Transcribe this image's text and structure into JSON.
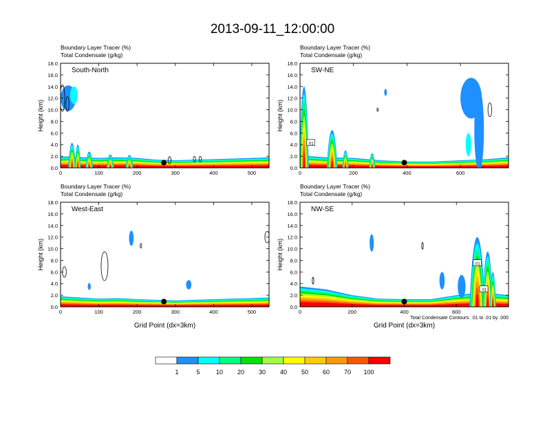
{
  "title": "2013-09-11_12:00:00",
  "chart_data": [
    {
      "type": "area",
      "panel_label": "South-North",
      "subtitle_line1": "Boundary Layer Tracer    (%)",
      "subtitle_line2": "Total Condensate   (g/kg)",
      "ylabel": "Height (km)",
      "xlabel": "",
      "xlim": [
        0,
        545
      ],
      "ylim": [
        0,
        18
      ],
      "xticks": [
        0,
        100,
        200,
        300,
        400,
        500
      ],
      "yticks": [
        "0.0",
        "2.0",
        "4.0",
        "6.0",
        "8.0",
        "10.0",
        "12.0",
        "14.0",
        "16.0",
        "18.0"
      ],
      "tracer_top": [
        [
          0,
          1.9
        ],
        [
          30,
          2.0
        ],
        [
          60,
          1.8
        ],
        [
          100,
          1.7
        ],
        [
          150,
          1.8
        ],
        [
          200,
          1.7
        ],
        [
          250,
          1.4
        ],
        [
          300,
          1.3
        ],
        [
          350,
          1.4
        ],
        [
          400,
          1.5
        ],
        [
          450,
          1.6
        ],
        [
          500,
          1.7
        ],
        [
          545,
          1.8
        ]
      ],
      "plumes": [
        [
          30,
          4.3,
          10
        ],
        [
          45,
          4.0,
          8
        ],
        [
          75,
          2.8,
          10
        ],
        [
          130,
          2.3,
          10
        ],
        [
          180,
          2.2,
          10
        ]
      ],
      "clouds": [
        [
          20,
          12.0,
          20,
          2.2,
          "#1e90ff"
        ],
        [
          35,
          12.5,
          10,
          1.5,
          "#00ffff"
        ]
      ],
      "contours": [
        [
          5,
          12,
          6,
          2.3
        ],
        [
          18,
          11,
          4,
          1.3
        ],
        [
          285,
          1.3,
          4,
          0.6
        ],
        [
          350,
          1.5,
          3,
          0.5
        ],
        [
          365,
          1.5,
          3,
          0.5
        ]
      ],
      "marker": [
        270,
        0.9
      ]
    },
    {
      "type": "area",
      "panel_label": "SW-NE",
      "subtitle_line1": "Boundary Layer Tracer    (%)",
      "subtitle_line2": "Total Condensate   (g/kg)",
      "ylabel": "Height (km)",
      "xlabel": "",
      "xlim": [
        0,
        780
      ],
      "ylim": [
        0,
        18
      ],
      "xticks": [
        0,
        200,
        400,
        600
      ],
      "yticks": [
        "0.0",
        "2.0",
        "4.0",
        "6.0",
        "8.0",
        "10.0",
        "12.0",
        "14.0",
        "16.0",
        "18.0"
      ],
      "tracer_top": [
        [
          0,
          2.5
        ],
        [
          40,
          2.0
        ],
        [
          100,
          1.8
        ],
        [
          200,
          1.7
        ],
        [
          300,
          1.3
        ],
        [
          400,
          1.1
        ],
        [
          500,
          1.1
        ],
        [
          600,
          1.3
        ],
        [
          700,
          1.5
        ],
        [
          780,
          1.8
        ]
      ],
      "plumes": [
        [
          15,
          14.0,
          18
        ],
        [
          120,
          6.5,
          20
        ],
        [
          170,
          3.0,
          12
        ],
        [
          270,
          2.5,
          12
        ]
      ],
      "clouds": [
        [
          640,
          12.0,
          40,
          3.5,
          "#1e90ff"
        ],
        [
          670,
          6.5,
          18,
          7,
          "#1e90ff"
        ],
        [
          630,
          4.0,
          10,
          2,
          "#00ffff"
        ],
        [
          320,
          13.0,
          5,
          0.6,
          "#1e90ff"
        ]
      ],
      "contours": [
        [
          710,
          10.0,
          7,
          1.2
        ],
        [
          290,
          10.0,
          2,
          0.3
        ]
      ],
      "contour_labels": [
        [
          40,
          4.3,
          ".01"
        ]
      ],
      "marker": [
        390,
        0.9
      ]
    },
    {
      "type": "area",
      "panel_label": "West-East",
      "subtitle_line1": "Boundary Layer Tracer    (%)",
      "subtitle_line2": "Total Condensate   (g/kg)",
      "ylabel": "Height (km)",
      "xlabel": "Grid Point (dx=3km)",
      "xlim": [
        0,
        545
      ],
      "ylim": [
        0,
        18
      ],
      "xticks": [
        0,
        100,
        200,
        300,
        400,
        500
      ],
      "yticks": [
        "0.0",
        "2.0",
        "4.0",
        "6.0",
        "8.0",
        "10.0",
        "12.0",
        "14.0",
        "16.0",
        "18.0"
      ],
      "tracer_top": [
        [
          0,
          1.8
        ],
        [
          50,
          1.6
        ],
        [
          100,
          1.4
        ],
        [
          150,
          1.5
        ],
        [
          200,
          1.3
        ],
        [
          250,
          1.2
        ],
        [
          300,
          1.1
        ],
        [
          350,
          1.2
        ],
        [
          400,
          1.3
        ],
        [
          450,
          1.4
        ],
        [
          500,
          1.5
        ],
        [
          545,
          1.6
        ]
      ],
      "plumes": [],
      "clouds": [
        [
          185,
          11.8,
          6,
          1.3,
          "#1e90ff"
        ],
        [
          75,
          3.5,
          4,
          0.6,
          "#1e90ff"
        ],
        [
          335,
          3.8,
          7,
          0.8,
          "#1e90ff"
        ]
      ],
      "contours": [
        [
          115,
          7.0,
          9,
          2.5
        ],
        [
          10,
          6.0,
          5,
          0.9
        ],
        [
          540,
          12.0,
          6,
          1.0
        ],
        [
          210,
          10.5,
          2,
          0.4
        ]
      ],
      "marker": [
        270,
        0.9
      ]
    },
    {
      "type": "area",
      "panel_label": "NW-SE",
      "subtitle_line1": "Boundary Layer Tracer    (%)",
      "subtitle_line2": "Total Condensate   (g/kg)",
      "ylabel": "Height (km)",
      "xlabel": "Grid Point (dx=3km)",
      "note": "Total Condensate Contours: .01 to .01 by .000",
      "xlim": [
        0,
        800
      ],
      "ylim": [
        0,
        18
      ],
      "xticks": [
        0,
        200,
        400,
        600
      ],
      "yticks": [
        "0.0",
        "2.0",
        "4.0",
        "6.0",
        "8.0",
        "10.0",
        "12.0",
        "14.0",
        "16.0",
        "18.0"
      ],
      "tracer_top": [
        [
          0,
          3.5
        ],
        [
          100,
          3.0
        ],
        [
          200,
          2.0
        ],
        [
          300,
          1.4
        ],
        [
          400,
          1.3
        ],
        [
          500,
          1.3
        ],
        [
          600,
          2.0
        ],
        [
          700,
          2.5
        ],
        [
          800,
          2.0
        ]
      ],
      "plumes": [
        [
          680,
          12.0,
          30
        ],
        [
          720,
          9.5,
          20
        ],
        [
          740,
          6.0,
          12
        ]
      ],
      "clouds": [
        [
          275,
          11.0,
          8,
          1.5,
          "#1e90ff"
        ],
        [
          545,
          4.5,
          10,
          1.5,
          "#1e90ff"
        ],
        [
          620,
          3.5,
          15,
          2,
          "#1e90ff"
        ]
      ],
      "contours": [
        [
          470,
          10.5,
          3,
          0.6
        ],
        [
          50,
          4.5,
          3,
          0.6
        ]
      ],
      "contour_labels": [
        [
          680,
          7.5,
          ".01"
        ],
        [
          705,
          3.0,
          ".01"
        ]
      ],
      "marker": [
        400,
        0.9
      ]
    }
  ],
  "colorbar": {
    "colors": [
      "#ffffff",
      "#1e90ff",
      "#00ffff",
      "#00ff80",
      "#00e400",
      "#a0ff40",
      "#ffff00",
      "#ffcc00",
      "#ff9900",
      "#ff5500",
      "#ff0000"
    ],
    "labels": [
      "1",
      "5",
      "10",
      "20",
      "30",
      "40",
      "50",
      "60",
      "70",
      "100"
    ]
  }
}
